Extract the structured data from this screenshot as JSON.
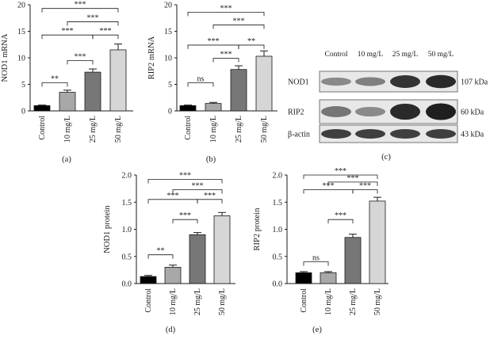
{
  "chart_data": [
    {
      "type": "bar",
      "panel_label": "(a)",
      "ylabel": "NOD1 mRNA",
      "ylim": [
        0,
        20
      ],
      "yticks": [
        0,
        5,
        10,
        15,
        20
      ],
      "categories": [
        "Control",
        "10 mg/L",
        "25 mg/L",
        "50 mg/L"
      ],
      "values": [
        1.0,
        3.5,
        7.3,
        11.5
      ],
      "errors": [
        0.1,
        0.4,
        0.6,
        1.1
      ],
      "colors": [
        "#000000",
        "#a8a8a8",
        "#777777",
        "#d6d6d6"
      ],
      "significance": [
        {
          "from": 0,
          "to": 1,
          "label": "**",
          "level": 5.3
        },
        {
          "from": 1,
          "to": 2,
          "label": "***",
          "level": 9.5
        },
        {
          "from": 0,
          "to": 2,
          "label": "***",
          "level": 14.3
        },
        {
          "from": 2,
          "to": 3,
          "label": "***",
          "level": 14.3
        },
        {
          "from": 1,
          "to": 3,
          "label": "***",
          "level": 16.8
        },
        {
          "from": 0,
          "to": 3,
          "label": "***",
          "level": 19.3
        }
      ]
    },
    {
      "type": "bar",
      "panel_label": "(b)",
      "ylabel": "RIP2 mRNA",
      "ylim": [
        0,
        20
      ],
      "yticks": [
        0,
        5,
        10,
        15,
        20
      ],
      "categories": [
        "Control",
        "10 mg/L",
        "25 mg/L",
        "50 mg/L"
      ],
      "values": [
        1.0,
        1.4,
        7.8,
        10.3
      ],
      "errors": [
        0.1,
        0.2,
        0.7,
        1.0
      ],
      "colors": [
        "#000000",
        "#a8a8a8",
        "#777777",
        "#d6d6d6"
      ],
      "significance": [
        {
          "from": 0,
          "to": 1,
          "label": "ns",
          "level": 5.3
        },
        {
          "from": 1,
          "to": 2,
          "label": "***",
          "level": 9.9
        },
        {
          "from": 2,
          "to": 3,
          "label": "**",
          "level": 12.4
        },
        {
          "from": 0,
          "to": 2,
          "label": "***",
          "level": 12.4
        },
        {
          "from": 1,
          "to": 3,
          "label": "***",
          "level": 16.2
        },
        {
          "from": 0,
          "to": 3,
          "label": "***",
          "level": 18.6
        }
      ]
    },
    {
      "type": "bar",
      "panel_label": "(d)",
      "ylabel": "NOD1 protein",
      "ylim": [
        0,
        2.0
      ],
      "yticks": [
        "0.0",
        "0.5",
        "1.0",
        "1.5",
        "2.0"
      ],
      "categories": [
        "Control",
        "10 mg/L",
        "25 mg/L",
        "50 mg/L"
      ],
      "values": [
        0.13,
        0.3,
        0.9,
        1.25
      ],
      "errors": [
        0.02,
        0.04,
        0.04,
        0.06
      ],
      "colors": [
        "#000000",
        "#a8a8a8",
        "#777777",
        "#d6d6d6"
      ],
      "significance": [
        {
          "from": 0,
          "to": 1,
          "label": "**",
          "level": 0.53
        },
        {
          "from": 1,
          "to": 2,
          "label": "***",
          "level": 1.18
        },
        {
          "from": 2,
          "to": 3,
          "label": "***",
          "level": 1.55
        },
        {
          "from": 0,
          "to": 2,
          "label": "***",
          "level": 1.55
        },
        {
          "from": 1,
          "to": 3,
          "label": "***",
          "level": 1.73
        },
        {
          "from": 0,
          "to": 3,
          "label": "***",
          "level": 1.92
        }
      ]
    },
    {
      "type": "bar",
      "panel_label": "(e)",
      "ylabel": "RIP2 protein",
      "ylim": [
        0,
        2.0
      ],
      "yticks": [
        "0.0",
        "0.5",
        "1.0",
        "1.5",
        "2.0"
      ],
      "categories": [
        "Control",
        "10 mg/L",
        "25 mg/L",
        "50 mg/L"
      ],
      "values": [
        0.2,
        0.2,
        0.85,
        1.52
      ],
      "errors": [
        0.02,
        0.02,
        0.06,
        0.07
      ],
      "colors": [
        "#000000",
        "#a8a8a8",
        "#777777",
        "#d6d6d6"
      ],
      "significance": [
        {
          "from": 0,
          "to": 1,
          "label": "ns",
          "level": 0.4
        },
        {
          "from": 1,
          "to": 2,
          "label": "***",
          "level": 1.18
        },
        {
          "from": 2,
          "to": 3,
          "label": "***",
          "level": 1.73
        },
        {
          "from": 0,
          "to": 2,
          "label": "***",
          "level": 1.73
        },
        {
          "from": 1,
          "to": 3,
          "label": "***",
          "level": 1.87
        },
        {
          "from": 0,
          "to": 3,
          "label": "***",
          "level": 2.0
        }
      ]
    }
  ],
  "western_blot": {
    "panel_label": "(c)",
    "lanes": [
      "Control",
      "10 mg/L",
      "25 mg/L",
      "50 mg/L"
    ],
    "rows": [
      {
        "protein": "NOD1",
        "size": "107 kDa",
        "band_intensity": [
          0.45,
          0.5,
          0.85,
          0.9
        ]
      },
      {
        "protein": "RIP2",
        "size": "60 kDa",
        "band_intensity": [
          0.55,
          0.45,
          0.9,
          0.95
        ]
      },
      {
        "protein": "β-actin",
        "size": "43 kDa",
        "band_intensity": [
          0.8,
          0.8,
          0.8,
          0.8
        ]
      }
    ]
  }
}
